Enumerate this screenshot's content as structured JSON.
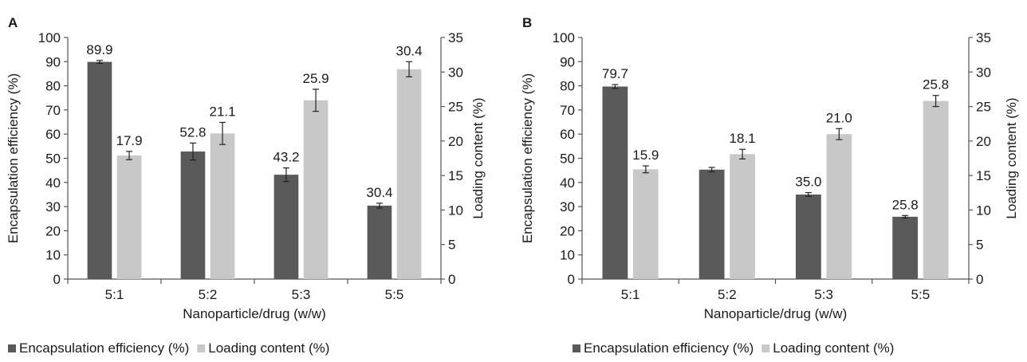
{
  "colors": {
    "encapsulation": "#595959",
    "loading": "#c8c8c8"
  },
  "chart_data": [
    {
      "type": "bar",
      "panel": "A",
      "xlabel": "Nanoparticle/drug (w/w)",
      "ylabel": "Encapsulation efficiency (%)",
      "y2label": "Loading content (%)",
      "ylim": [
        0,
        100
      ],
      "y2lim": [
        0,
        35
      ],
      "yticks": [
        "0",
        "10",
        "20",
        "30",
        "40",
        "50",
        "60",
        "70",
        "80",
        "90",
        "100"
      ],
      "y2ticks": [
        "0",
        "5",
        "10",
        "15",
        "20",
        "25",
        "30",
        "35"
      ],
      "categories": [
        "5:1",
        "5:2",
        "5:3",
        "5:5"
      ],
      "legend_position": "bottom",
      "series": [
        {
          "name": "Encapsulation efficiency (%)",
          "axis": "left",
          "values": [
            89.9,
            52.8,
            43.2,
            30.4
          ],
          "errors": [
            0.6,
            3.5,
            2.8,
            1.0
          ],
          "labels": [
            "89.9",
            "52.8",
            "43.2",
            "30.4"
          ]
        },
        {
          "name": "Loading content (%)",
          "axis": "right",
          "values": [
            17.9,
            21.1,
            25.9,
            30.4
          ],
          "errors": [
            0.6,
            1.6,
            1.6,
            1.1
          ],
          "labels": [
            "17.9",
            "21.1",
            "25.9",
            "30.4"
          ]
        }
      ]
    },
    {
      "type": "bar",
      "panel": "B",
      "xlabel": "Nanoparticle/drug (w/w)",
      "ylabel": "Encapsulation efficiency (%)",
      "y2label": "Loading content (%)",
      "ylim": [
        0,
        100
      ],
      "y2lim": [
        0,
        35
      ],
      "yticks": [
        "0",
        "10",
        "20",
        "30",
        "40",
        "50",
        "60",
        "70",
        "80",
        "90",
        "100"
      ],
      "y2ticks": [
        "0",
        "5",
        "10",
        "15",
        "20",
        "25",
        "30",
        "35"
      ],
      "categories": [
        "5:1",
        "5:2",
        "5:3",
        "5:5"
      ],
      "legend_position": "bottom",
      "series": [
        {
          "name": "Encapsulation efficiency (%)",
          "axis": "left",
          "values": [
            79.7,
            45.3,
            35.0,
            25.8
          ],
          "errors": [
            0.8,
            0.9,
            0.8,
            0.5
          ],
          "labels": [
            "79.7",
            "",
            "35.0",
            "25.8"
          ]
        },
        {
          "name": "Loading content (%)",
          "axis": "right",
          "values": [
            15.9,
            18.1,
            21.0,
            25.8
          ],
          "errors": [
            0.5,
            0.7,
            0.8,
            0.8
          ],
          "labels": [
            "15.9",
            "18.1",
            "21.0",
            "25.8"
          ]
        }
      ]
    }
  ]
}
